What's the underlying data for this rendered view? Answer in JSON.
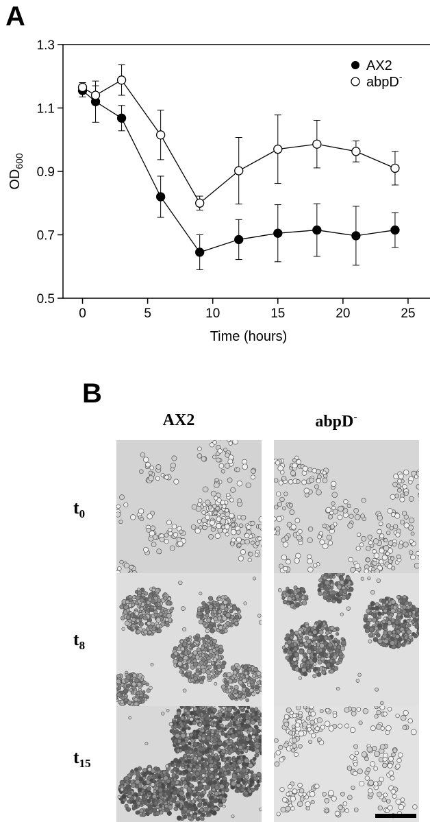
{
  "panel_a": {
    "letter": "A",
    "chart_data": {
      "type": "line",
      "title": "",
      "xlabel": "Time (hours)",
      "ylabel": "OD",
      "ylabel_sub": "600",
      "xlim": [
        -1.5,
        27
      ],
      "ylim": [
        0.5,
        1.3
      ],
      "x_ticks": [
        0,
        5,
        10,
        15,
        20,
        25
      ],
      "y_ticks": [
        0.5,
        0.7,
        0.9,
        1.1,
        1.3
      ],
      "x_tick_labels": [
        "0",
        "5",
        "10",
        "15",
        "20",
        "25"
      ],
      "y_tick_labels": [
        "0.5",
        "0.7",
        "0.9",
        "1.1",
        "1.3"
      ],
      "grid": false,
      "legend": "top-right",
      "x": [
        0,
        1,
        3,
        6,
        9,
        12,
        15,
        18,
        21,
        24
      ],
      "series": [
        {
          "name": "AX2",
          "marker": "filled-circle",
          "color": "#000000",
          "values": [
            1.155,
            1.12,
            1.068,
            0.82,
            0.645,
            0.685,
            0.705,
            0.715,
            0.697,
            0.715
          ],
          "errors": [
            0.02,
            0.065,
            0.04,
            0.065,
            0.055,
            0.063,
            0.09,
            0.083,
            0.093,
            0.055
          ]
        },
        {
          "name": "abpD",
          "name_sup": "-",
          "marker": "open-circle",
          "color": "#000000",
          "values": [
            1.165,
            1.14,
            1.188,
            1.015,
            0.8,
            0.902,
            0.97,
            0.986,
            0.963,
            0.91
          ],
          "errors": [
            0.015,
            0.03,
            0.048,
            0.078,
            0.022,
            0.105,
            0.108,
            0.075,
            0.033,
            0.053
          ]
        }
      ]
    }
  },
  "panel_b": {
    "letter": "B",
    "columns": [
      {
        "label": "AX2"
      },
      {
        "label": "abpD",
        "sup": "-"
      }
    ],
    "rows": [
      {
        "base": "t",
        "sub": "0"
      },
      {
        "base": "t",
        "sub": "8"
      },
      {
        "base": "t",
        "sub": "15"
      }
    ]
  }
}
